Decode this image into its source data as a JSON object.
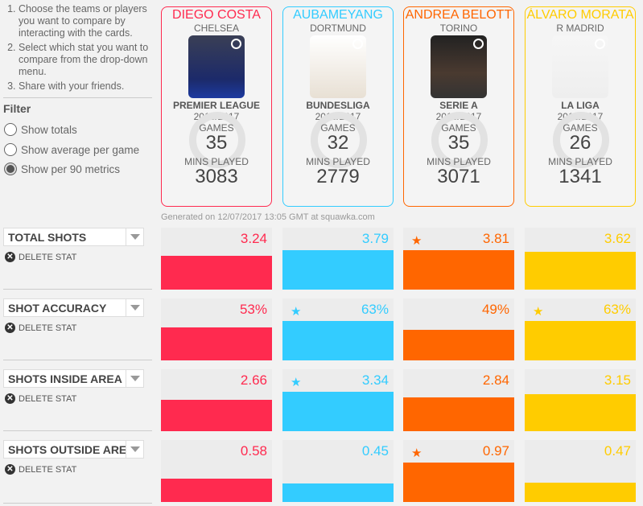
{
  "instructions": [
    "Choose the teams or players you want to compare by interacting with the cards.",
    "Select which stat you want to compare from the drop-down menu.",
    "Share with your friends."
  ],
  "filter": {
    "title": "Filter",
    "options": [
      {
        "label": "Show totals",
        "selected": false
      },
      {
        "label": "Show average per game",
        "selected": false
      },
      {
        "label": "Show per 90 metrics",
        "selected": true
      }
    ]
  },
  "labels": {
    "games": "GAMES",
    "mins": "MINS PLAYED",
    "delete": "DELETE STAT"
  },
  "players": [
    {
      "name": "DIEGO COSTA",
      "team": "CHELSEA",
      "league": "PREMIER LEAGUE",
      "season": "2016/2017",
      "games": "35",
      "mins": "3083",
      "color": "#ff2a4f"
    },
    {
      "name": "AUBAMEYANG",
      "team": "DORTMUND",
      "league": "BUNDESLIGA",
      "season": "2016/2017",
      "games": "32",
      "mins": "2779",
      "color": "#33ccff"
    },
    {
      "name": "ANDREA BELOTT",
      "team": "TORINO",
      "league": "SERIE A",
      "season": "2016/2017",
      "games": "35",
      "mins": "3071",
      "color": "#ff6600"
    },
    {
      "name": "ÁLVARO MORATA",
      "team": "R MADRID",
      "league": "LA LIGA",
      "season": "2016/2017",
      "games": "26",
      "mins": "1341",
      "color": "#ffcc00"
    }
  ],
  "generated": "Generated on 12/07/2017 13:05 GMT at squawka.com",
  "stats": [
    {
      "name": "TOTAL SHOTS",
      "values": [
        "3.24",
        "3.79",
        "3.81",
        "3.62"
      ],
      "nums": [
        3.24,
        3.79,
        3.81,
        3.62
      ],
      "best": [
        false,
        false,
        true,
        false
      ]
    },
    {
      "name": "SHOT ACCURACY",
      "values": [
        "53%",
        "63%",
        "49%",
        "63%"
      ],
      "nums": [
        53,
        63,
        49,
        63
      ],
      "best": [
        false,
        true,
        false,
        true
      ]
    },
    {
      "name": "SHOTS INSIDE AREA",
      "values": [
        "2.66",
        "3.34",
        "2.84",
        "3.15"
      ],
      "nums": [
        2.66,
        3.34,
        2.84,
        3.15
      ],
      "best": [
        false,
        true,
        false,
        false
      ]
    },
    {
      "name": "SHOTS OUTSIDE AREA",
      "values": [
        "0.58",
        "0.45",
        "0.97",
        "0.47"
      ],
      "nums": [
        0.58,
        0.45,
        0.97,
        0.47
      ],
      "best": [
        false,
        false,
        true,
        false
      ]
    }
  ]
}
